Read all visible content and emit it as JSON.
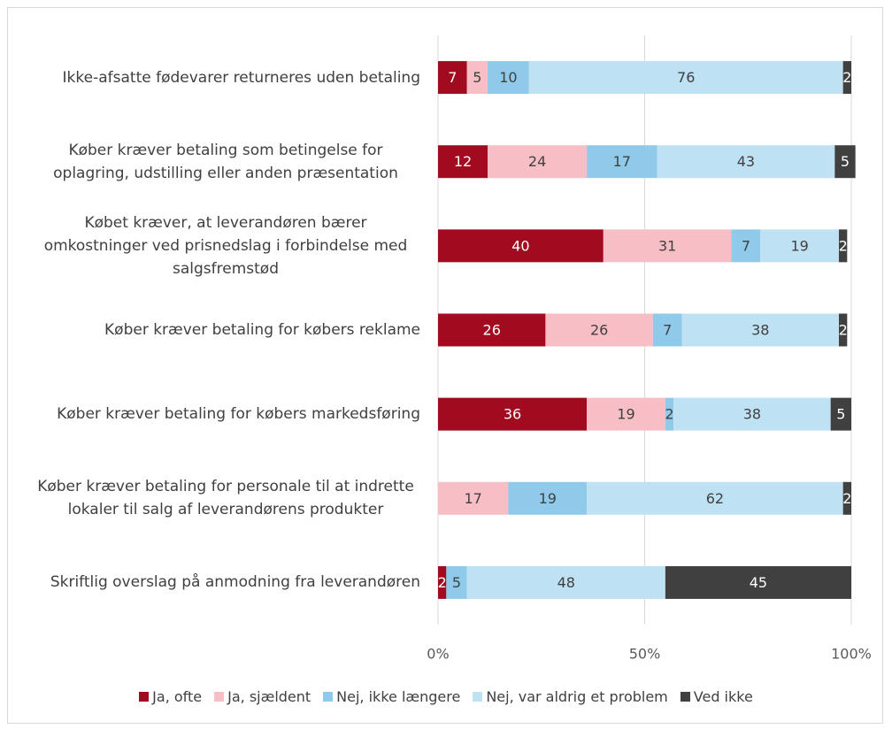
{
  "chart_data": {
    "type": "stacked-bar-horizontal",
    "categories": [
      "Ikke-afsatte fødevarer returneres uden betaling",
      "Køber kræver betaling som betingelse for oplagring, udstilling eller anden præsentation",
      "Købet kræver, at leverandøren bærer omkostninger ved prisnedslag i forbindelse med salgsfremstød",
      "Køber kræver betaling for købers reklame",
      "Køber kræver betaling for købers markedsføring",
      "Køber kræver betaling for personale til at indrette lokaler til salg af leverandørens produkter",
      "Skriftlig overslag på anmodning fra leverandøren"
    ],
    "series": [
      {
        "name": "Ja, ofte",
        "color": "#a20b1f",
        "values": [
          7,
          12,
          40,
          26,
          36,
          null,
          2
        ]
      },
      {
        "name": "Ja, sjældent",
        "color": "#f8bec6",
        "values": [
          5,
          24,
          31,
          26,
          19,
          17,
          null
        ]
      },
      {
        "name": "Nej, ikke længere",
        "color": "#8fcaea",
        "values": [
          10,
          17,
          7,
          7,
          2,
          19,
          5
        ]
      },
      {
        "name": "Nej, var aldrig et problem",
        "color": "#bfe1f4",
        "values": [
          76,
          43,
          19,
          38,
          38,
          62,
          48
        ]
      },
      {
        "name": "Ved ikke",
        "color": "#404040",
        "values": [
          2,
          5,
          2,
          2,
          5,
          2,
          45
        ]
      }
    ],
    "xlim": [
      0,
      100
    ],
    "xticks": [
      {
        "value": 0,
        "label": "0%"
      },
      {
        "value": 50,
        "label": "50%"
      },
      {
        "value": 100,
        "label": "100%"
      }
    ],
    "grid": true,
    "legend": "bottom"
  }
}
